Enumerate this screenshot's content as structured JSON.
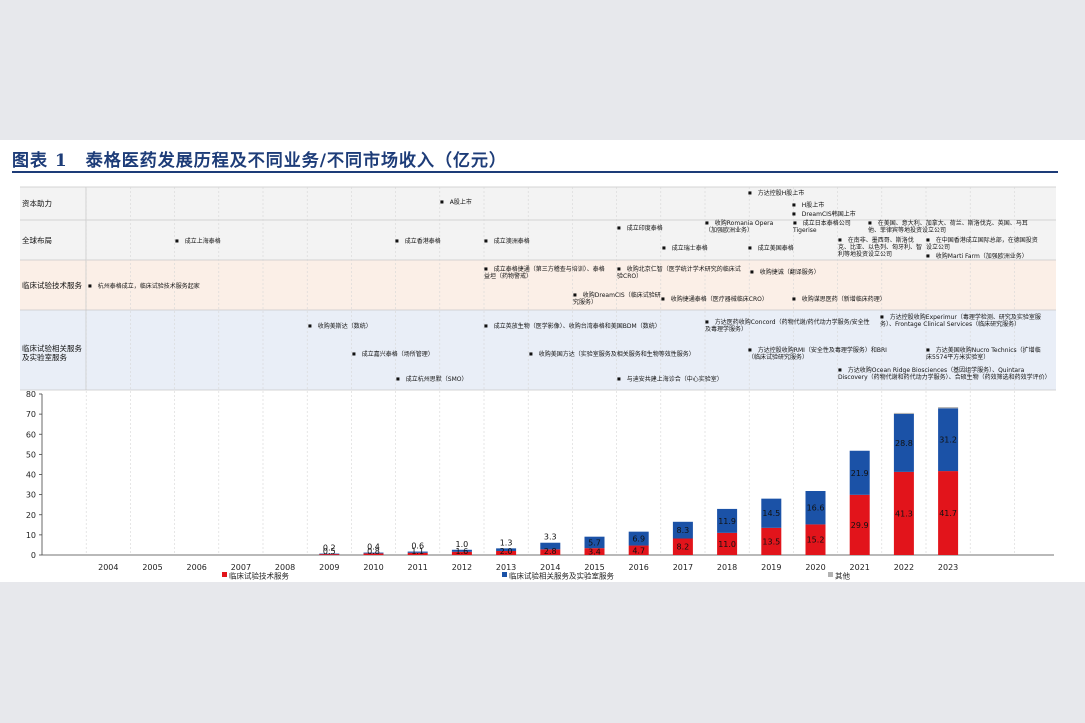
{
  "figure_title": "图表 1　泰格医药发展历程及不同业务/不同市场收入（亿元）",
  "timeline": {
    "bands": [
      {
        "label": "资本助力",
        "events": [
          {
            "text": "A股上市"
          },
          {
            "text": "方达控股H股上市"
          },
          {
            "text": "H股上市"
          },
          {
            "text": "DreamCIS韩国上市"
          }
        ]
      },
      {
        "label": "全球布局",
        "events": [
          {
            "text": "成立上海泰格"
          },
          {
            "text": "成立香港泰格"
          },
          {
            "text": "成立澳洲泰格"
          },
          {
            "text": "成立印度泰格"
          },
          {
            "text": "收购Romania Opera\n（加强欧洲业务）"
          },
          {
            "text": "成立日本泰格公司\nTigerise"
          },
          {
            "text": "在美国、意大利、加拿大、荷兰、斯洛伐克、英国、马耳他、菲律宾等地投资设立公司"
          },
          {
            "text": "成立瑞士泰格"
          },
          {
            "text": "成立美国泰格"
          },
          {
            "text": "在南非、墨西哥、斯洛伐克、比亚、以色列、匈牙利、智利等地投资设立公司"
          },
          {
            "text": "在中国香港成立国际总部，在德国投资设立公司"
          },
          {
            "text": "收购Marti Farm（加强欧洲业务）"
          }
        ]
      },
      {
        "label": "临床试验技术服务",
        "events": [
          {
            "text": "杭州泰格成立，临床试验技术服务起家"
          },
          {
            "text": "成立泰格捷通（第三方稽查与培训）、泰格益坦（药物警戒）"
          },
          {
            "text": "收购北京仁智（医学统计学术研究的临床试验CRO）"
          },
          {
            "text": "收购捷诚（翻译服务）"
          },
          {
            "text": "收购DreamCIS（临床试验研究服务）"
          },
          {
            "text": "收购捷通泰格（医疗器械临床CRO）"
          },
          {
            "text": "收购谋思医药（新增临床药理）"
          }
        ]
      },
      {
        "label": "临床试验相关服务\n及实验室服务",
        "events": [
          {
            "text": "收购美斯达（数统）"
          },
          {
            "text": "成立英放生物（医学影像）、收购台湾泰格和美国BDM（数统）"
          },
          {
            "text": "方达医药收购Concord（药物代谢/药代动力学服务/安全性及毒理学服务）"
          },
          {
            "text": "方达控股收购Experimur（毒理学检测、研究及实验室服务）、Frontage Clinical Services（临床研究服务）"
          },
          {
            "text": "成立嘉兴泰格（场所管理）"
          },
          {
            "text": "收购美国方达（实验室服务及相关服务和生物等效性服务）"
          },
          {
            "text": "方达控股收购RMI（安全性及毒理学服务）和BRI（临床试验研究服务）"
          },
          {
            "text": "方达美国收购Nucro Technics（扩增临床5574平方米实验室）"
          },
          {
            "text": "成立杭州思默（SMO）"
          },
          {
            "text": "与迪安共建上海诊合（中心实验室）"
          },
          {
            "text": "方达收购Ocean Ridge Biosciences（基因组学服务）、Quintara Discovery（药物代谢和药代动力学服务）、合硕生物（药效筛选和药效学评价）"
          }
        ]
      }
    ]
  },
  "chart_data": {
    "type": "bar",
    "stacked": true,
    "categories": [
      "2004",
      "2005",
      "2006",
      "2007",
      "2008",
      "2009",
      "2010",
      "2011",
      "2012",
      "2013",
      "2014",
      "2015",
      "2016",
      "2017",
      "2018",
      "2019",
      "2020",
      "2021",
      "2022",
      "2023"
    ],
    "series": [
      {
        "name": "临床试验技术服务",
        "color": "#e2141b",
        "values": [
          null,
          null,
          null,
          null,
          null,
          0.5,
          0.8,
          1.1,
          1.6,
          2.0,
          2.8,
          3.4,
          4.7,
          8.2,
          11.0,
          13.5,
          15.2,
          29.9,
          41.3,
          41.7
        ],
        "labels": [
          null,
          null,
          null,
          null,
          null,
          "0.5",
          "0.8",
          "1.1",
          "1.6",
          "2.0",
          "2.8",
          "3.4",
          "4.7",
          "8.2",
          "11.0",
          "13.5",
          "15.2",
          "29.9",
          "41.3",
          "41.7"
        ]
      },
      {
        "name": "临床试验相关服务及实验室服务",
        "color": "#1b52a7",
        "values": [
          null,
          null,
          null,
          null,
          null,
          0.2,
          0.4,
          0.6,
          1.0,
          1.3,
          3.3,
          5.7,
          6.9,
          8.3,
          11.9,
          14.5,
          16.6,
          21.9,
          28.8,
          31.2
        ],
        "labels": [
          null,
          null,
          null,
          null,
          null,
          "0.2",
          "0.4",
          "0.6",
          "1.0",
          "1.3",
          "3.3",
          "5.7",
          "6.9",
          "8.3",
          "11.9",
          "14.5",
          "16.6",
          "21.9",
          "28.8",
          "31.2"
        ]
      },
      {
        "name": "其他",
        "color": "#b2b2b2",
        "values": [
          null,
          null,
          null,
          null,
          null,
          0,
          0,
          0,
          0,
          0,
          0,
          0,
          0,
          0,
          0,
          0,
          0,
          0,
          0.5,
          0.6
        ],
        "labels": []
      }
    ],
    "ylim": [
      0,
      80
    ],
    "yticks": [
      0,
      10,
      20,
      30,
      40,
      50,
      60,
      70,
      80
    ],
    "title": "",
    "xlabel": "",
    "ylabel": "",
    "legend": "bottom"
  }
}
